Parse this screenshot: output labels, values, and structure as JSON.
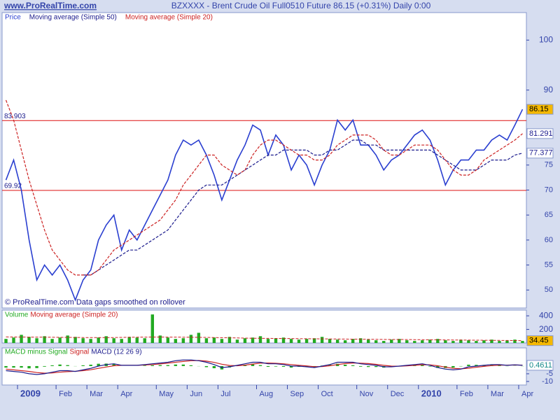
{
  "chart_data": [
    {
      "type": "line",
      "site": "www.ProRealTime.com",
      "title": "BZXXXX - Brent Crude Oil Full0510 Future   86.15 (+0.31%)   Daily  0:00",
      "note": "© ProRealTime.com  Data gaps smoothed on rollover",
      "ylim": [
        46.4,
        105.5
      ],
      "yticks": [
        50,
        55,
        60,
        65,
        70,
        75,
        90,
        100
      ],
      "hlines": [
        83.903,
        69.92
      ],
      "hline_color": "#dd1111",
      "series": [
        {
          "name": "Price",
          "color": "#2a3fd0",
          "values": [
            72,
            76,
            70,
            60,
            52,
            55,
            53,
            55,
            52,
            48,
            52,
            54,
            60,
            63,
            65,
            58,
            62,
            60,
            63,
            66,
            69,
            72,
            77,
            80,
            79,
            80,
            77,
            73,
            68,
            72,
            76,
            79,
            83,
            82,
            77,
            81,
            79,
            74,
            77,
            75,
            71,
            75,
            78,
            84,
            82,
            84,
            79,
            79,
            77,
            74,
            76,
            77,
            79,
            81,
            82,
            80,
            76,
            71,
            74,
            76,
            76,
            78,
            78,
            80,
            81,
            80,
            83,
            86.15
          ]
        },
        {
          "name": "Moving average (Simple 50)",
          "color": "#1a1a8c",
          "values": [
            null,
            null,
            null,
            null,
            null,
            null,
            null,
            null,
            null,
            null,
            53,
            53,
            54,
            55,
            56,
            57,
            58,
            58,
            59,
            60,
            61,
            62,
            64,
            66,
            68,
            70,
            71,
            71,
            71,
            72,
            73,
            74,
            75,
            76,
            77,
            77,
            78,
            78,
            78,
            78,
            77,
            77,
            78,
            78,
            79,
            80,
            80,
            79,
            79,
            78,
            78,
            78,
            78,
            78,
            78,
            78,
            77,
            76,
            75,
            74,
            74,
            74,
            75,
            76,
            76,
            76,
            77,
            77.377
          ]
        },
        {
          "name": "Moving average (Simple 20)",
          "color": "#cc2222",
          "values": [
            88,
            84,
            78,
            72,
            67,
            62,
            58,
            56,
            54,
            53,
            53,
            53,
            54,
            56,
            58,
            59,
            60,
            61,
            62,
            63,
            64,
            66,
            68,
            71,
            73,
            75,
            77,
            77,
            75,
            74,
            73,
            74,
            77,
            79,
            80,
            80,
            79,
            78,
            77,
            77,
            76,
            76,
            77,
            79,
            80,
            81,
            81,
            81,
            80,
            78,
            77,
            77,
            78,
            79,
            79,
            79,
            78,
            76,
            74,
            73,
            73,
            74,
            76,
            77,
            78,
            79,
            80,
            81.291
          ]
        }
      ]
    },
    {
      "type": "bar",
      "ylim": [
        0,
        484
      ],
      "yticks": [
        200,
        400
      ],
      "series": [
        {
          "name": "Volume",
          "color": "#22aa22",
          "values": [
            60,
            80,
            120,
            90,
            70,
            100,
            60,
            80,
            110,
            90,
            70,
            60,
            80,
            100,
            70,
            60,
            90,
            80,
            70,
            420,
            110,
            80,
            60,
            70,
            120,
            150,
            70,
            80,
            60,
            90,
            50,
            70,
            80,
            100,
            60,
            70,
            80,
            60,
            50,
            60,
            70,
            90,
            60,
            50,
            40,
            60,
            70,
            50,
            40,
            30,
            50,
            60,
            40,
            30,
            40,
            50,
            60,
            40,
            30,
            50,
            40,
            30,
            40,
            50,
            30,
            40,
            50,
            30
          ]
        },
        {
          "name": "Moving average (Simple 20)",
          "color": "#cc2222",
          "values": [
            90,
            89,
            88,
            87,
            86,
            85,
            84,
            83,
            82,
            81,
            80,
            80,
            79,
            79,
            80,
            82,
            84,
            85,
            86,
            88,
            88,
            87,
            86,
            85,
            84,
            83,
            82,
            80,
            78,
            76,
            74,
            72,
            70,
            69,
            68,
            67,
            66,
            65,
            64,
            63,
            62,
            61,
            60,
            59,
            58,
            57,
            56,
            55,
            54,
            53,
            52,
            51,
            50,
            49,
            48,
            47,
            46,
            45,
            44,
            43,
            42,
            41,
            40,
            39,
            38,
            37,
            36,
            34.45
          ]
        }
      ]
    },
    {
      "type": "line",
      "categories": [
        null,
        null,
        "2009",
        null,
        null,
        null,
        null,
        "Feb",
        null,
        null,
        null,
        "Mar",
        null,
        null,
        null,
        "Apr",
        null,
        null,
        null,
        null,
        "May",
        null,
        null,
        null,
        "Jun",
        null,
        null,
        null,
        "Jul",
        null,
        null,
        null,
        null,
        "Aug",
        null,
        null,
        null,
        "Sep",
        null,
        null,
        null,
        "Oct",
        null,
        null,
        null,
        null,
        "Nov",
        null,
        null,
        null,
        "Dec",
        null,
        null,
        null,
        "2010",
        null,
        null,
        null,
        null,
        "Feb",
        null,
        null,
        null,
        "Mar",
        null,
        null,
        null,
        "Apr"
      ],
      "bold_categories": [
        "2009",
        "2010"
      ],
      "ylim": [
        -12.3,
        11.8
      ],
      "yticks": [
        -10,
        -5
      ],
      "series": [
        {
          "name": "MACD minus Signal",
          "color": "#22aa22",
          "kind": "bar",
          "values": [
            -1,
            -1,
            -1,
            -1.5,
            -1.3,
            -0.4,
            0.5,
            1,
            0.6,
            -0.1,
            0.5,
            0.9,
            1.5,
            1.6,
            1.3,
            0,
            0,
            0,
            0.3,
            0.5,
            0.6,
            0.6,
            1,
            1,
            0.5,
            -0.1,
            -0.7,
            -1.4,
            -2.2,
            -0.9,
            0.3,
            0.9,
            1.2,
            0.6,
            -0.5,
            -0.3,
            -0.5,
            -1,
            -0.5,
            -0.6,
            -0.6,
            0.3,
            0.8,
            1.5,
            0.9,
            0.5,
            -0.4,
            -0.6,
            -0.6,
            -1,
            -0.5,
            0.1,
            0.4,
            0.5,
            0.6,
            -0.3,
            -1.2,
            -1.3,
            -1,
            -0.2,
            0.9,
            0.8,
            0.7,
            0.7,
            0.4,
            -0.1,
            0.1,
            -0.1
          ]
        },
        {
          "name": "Signal",
          "color": "#cc2222",
          "kind": "line",
          "values": [
            -2,
            -2.5,
            -3,
            -3.5,
            -4.2,
            -4.6,
            -4.5,
            -4,
            -3.6,
            -3.4,
            -3,
            -2.4,
            -1.5,
            -0.6,
            0.2,
            0.5,
            0.5,
            0.5,
            0.7,
            1,
            1.4,
            1.9,
            2.5,
            3,
            3.5,
            3.6,
            3.2,
            2.4,
            1.2,
            0.4,
            0.2,
            0.6,
            1.3,
            1.9,
            2,
            1.8,
            1.5,
            1,
            0.5,
            0.1,
            -0.4,
            -0.3,
            0.2,
            1,
            1.6,
            2,
            1.9,
            1.6,
            1.1,
            0.5,
            0,
            -0.1,
            0.1,
            0.5,
            0.9,
            0.8,
            0.2,
            -0.7,
            -1.5,
            -1.8,
            -1.4,
            -0.8,
            -0.2,
            0.3,
            0.6,
            0.6,
            0.7,
            0.6
          ]
        },
        {
          "name": "MACD (12 26 9)",
          "color": "#1a1a8c",
          "kind": "line",
          "values": [
            -3,
            -3.5,
            -4,
            -5,
            -5.5,
            -5,
            -4,
            -3,
            -3,
            -3.5,
            -2.5,
            -1.5,
            0,
            1,
            1.5,
            0.5,
            0.5,
            0.5,
            1,
            1.5,
            2,
            2.5,
            3.5,
            4,
            4,
            3.5,
            2.5,
            1,
            -1,
            -0.5,
            0.5,
            1.5,
            2.5,
            2.5,
            1.5,
            1.5,
            1,
            0,
            0,
            -0.5,
            -1,
            0,
            1,
            2.5,
            2.5,
            2.5,
            1.5,
            1,
            0.5,
            -0.5,
            -0.5,
            0,
            0.5,
            1,
            1.5,
            0.5,
            -1,
            -2,
            -2.5,
            -2,
            -0.5,
            0,
            0.5,
            1,
            1,
            0.5,
            0.8,
            0.4611
          ]
        }
      ]
    }
  ]
}
